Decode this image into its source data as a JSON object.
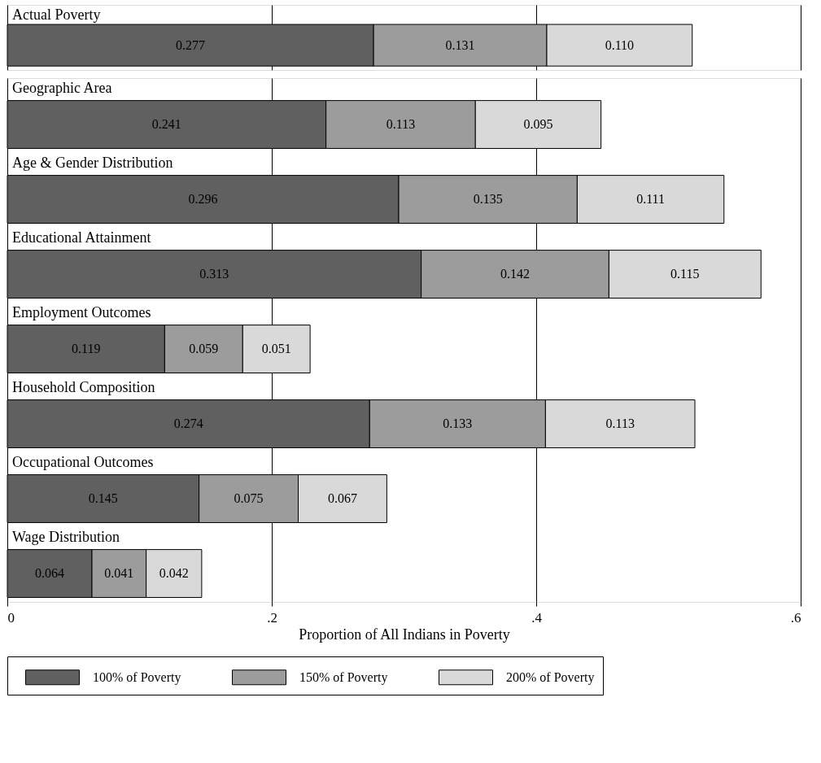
{
  "chart_data": [
    {
      "type": "bar",
      "orientation": "horizontal",
      "stacked": true,
      "categories": [
        "Actual Poverty"
      ],
      "series": [
        {
          "color": "#606060",
          "values": [
            0.277
          ],
          "value_labels": [
            "0.277"
          ]
        },
        {
          "color": "#9c9c9c",
          "values": [
            0.131
          ],
          "value_labels": [
            "0.131"
          ]
        },
        {
          "color": "#d9d9d9",
          "values": [
            0.11
          ],
          "value_labels": [
            "0.110"
          ]
        }
      ],
      "xlim": [
        0,
        0.6
      ],
      "xticks": [
        0,
        0.2,
        0.4,
        0.6
      ],
      "tick_labels": false,
      "grid": "x",
      "legend": false
    },
    {
      "type": "bar",
      "orientation": "horizontal",
      "stacked": true,
      "xlabel": "Proportion of All Indians in Poverty",
      "categories": [
        "Geographic Area",
        "Age & Gender Distribution",
        "Educational Attainment",
        "Employment Outcomes",
        "Household Composition",
        "Occupational Outcomes",
        "Wage Distribution"
      ],
      "series": [
        {
          "name": "100% of Poverty",
          "color": "#606060",
          "values": [
            0.241,
            0.296,
            0.313,
            0.119,
            0.274,
            0.145,
            0.064
          ],
          "value_labels": [
            "0.241",
            "0.296",
            "0.313",
            "0.119",
            "0.274",
            "0.145",
            "0.064"
          ]
        },
        {
          "name": "150% of Poverty",
          "color": "#9c9c9c",
          "values": [
            0.113,
            0.135,
            0.142,
            0.059,
            0.133,
            0.075,
            0.041
          ],
          "value_labels": [
            "0.113",
            "0.135",
            "0.142",
            "0.059",
            "0.133",
            "0.075",
            "0.041"
          ]
        },
        {
          "name": "200% of Poverty",
          "color": "#d9d9d9",
          "values": [
            0.095,
            0.111,
            0.115,
            0.051,
            0.113,
            0.067,
            0.042
          ],
          "value_labels": [
            "0.095",
            "0.111",
            "0.115",
            "0.051",
            "0.113",
            "0.067",
            "0.042"
          ]
        }
      ],
      "xlim": [
        0,
        0.6
      ],
      "xticks": [
        {
          "value": 0,
          "label": "0"
        },
        {
          "value": 0.2,
          "label": ".2"
        },
        {
          "value": 0.4,
          "label": ".4"
        },
        {
          "value": 0.6,
          "label": ".6"
        }
      ],
      "grid": "x",
      "legend": "bottom"
    }
  ]
}
